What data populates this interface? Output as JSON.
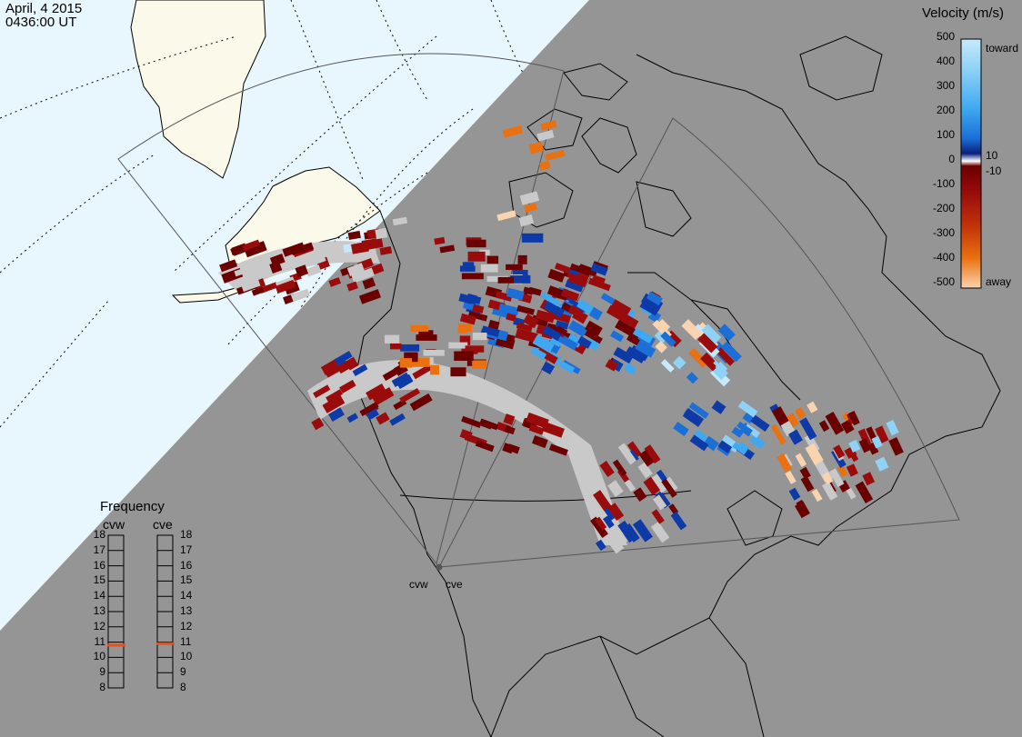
{
  "header": {
    "date": "April, 4 2015",
    "time": "0436:00 UT"
  },
  "colors": {
    "background_gray": "#959595",
    "ocean_light": "#e8f6fd",
    "land_cream": "#fbf9e9",
    "ground_scatter": "#c9c9c9",
    "frequency_marker": "#e8501a"
  },
  "colorbar": {
    "title": "Velocity (m/s)",
    "ticks": [
      "500",
      "400",
      "300",
      "200",
      "100",
      "10",
      "0",
      "-10",
      "-100",
      "-200",
      "-300",
      "-400",
      "-500"
    ],
    "toward_label": "toward",
    "away_label": "away",
    "colors": [
      "#c7e9fb",
      "#8fd2f7",
      "#3fa8f0",
      "#1b6fd6",
      "#0d3aa6",
      "#0a1f7c",
      "#ffffff",
      "#6b0000",
      "#9a0c0c",
      "#c2320a",
      "#e9710f",
      "#f9a55a",
      "#fad3b0"
    ]
  },
  "frequency_panel": {
    "title": "Frequency",
    "columns": [
      "cvw",
      "cve"
    ],
    "scale": [
      "18",
      "17",
      "16",
      "15",
      "14",
      "13",
      "12",
      "11",
      "10",
      "9",
      "8"
    ],
    "cvw_mhz": 10.8,
    "cve_mhz": 10.9
  },
  "stations": [
    "cvw",
    "cve"
  ]
}
